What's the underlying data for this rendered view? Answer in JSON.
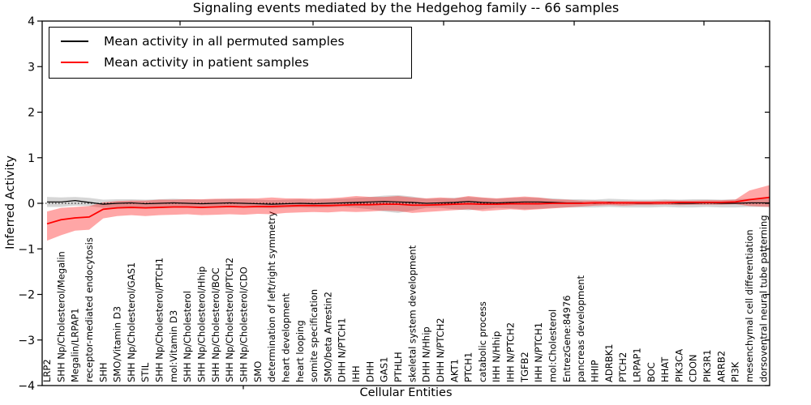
{
  "chart_data": {
    "type": "line",
    "title": "Signaling events mediated by the Hedgehog family -- 66 samples",
    "xlabel": "Cellular Entities",
    "ylabel": "Inferred Activity",
    "ylim": [
      -4,
      4
    ],
    "yticks": [
      "4",
      "3",
      "2",
      "1",
      "0",
      "−1",
      "−2",
      "−3",
      "−4"
    ],
    "grid": false,
    "legend_position": "upper left",
    "zero_line_style": "dotted",
    "categories": [
      "LRP2",
      "SHH Np/Cholesterol/Megalin",
      "Megalin/LRPAP1",
      "receptor-mediated endocytosis",
      "SHH",
      "SMO/Vitamin D3",
      "SHH Np/Cholesterol/GAS1",
      "STIL",
      "SHH Np/Cholesterol/PTCH1",
      "mol:Vitamin D3",
      "SHH Np/Cholesterol",
      "SHH Np/Cholesterol/Hhip",
      "SHH Np/Cholesterol/BOC",
      "SHH Np/Cholesterol/PTCH2",
      "SHH Np/Cholesterol/CDO",
      "SMO",
      "determination of left/right symmetry",
      "heart development",
      "heart looping",
      "somite specification",
      "SMO/beta Arrestin2",
      "DHH N/PTCH1",
      "IHH",
      "DHH",
      "GAS1",
      "PTHLH",
      "skeletal system development",
      "DHH N/Hhip",
      "DHH N/PTCH2",
      "AKT1",
      "PTCH1",
      "catabolic process",
      "IHH N/Hhip",
      "IHH N/PTCH2",
      "TGFB2",
      "IHH N/PTCH1",
      "mol:Cholesterol",
      "EntrezGene:84976",
      "pancreas development",
      "HHIP",
      "ADRBK1",
      "PTCH2",
      "LRPAP1",
      "BOC",
      "HHAT",
      "PIK3CA",
      "CDON",
      "PIK3R1",
      "ARRB2",
      "PI3K",
      "mesenchymal cell differentiation",
      "dorsoventral neural tube patterning"
    ],
    "series": [
      {
        "name": "Mean activity in all permuted samples",
        "color": "#000000",
        "band_color": "rgba(128,128,128,0.32)",
        "values": [
          0.03,
          0.03,
          0.06,
          0.02,
          -0.02,
          0.0,
          0.01,
          -0.01,
          0.0,
          0.01,
          0.0,
          -0.01,
          0.0,
          0.01,
          0.0,
          -0.01,
          -0.02,
          -0.01,
          0.0,
          -0.01,
          0.0,
          0.01,
          0.02,
          0.03,
          0.04,
          0.03,
          0.02,
          0.0,
          0.01,
          0.02,
          0.04,
          0.02,
          0.01,
          0.02,
          0.03,
          0.03,
          0.02,
          0.01,
          0.01,
          0.0,
          0.02,
          0.01,
          0.0,
          0.0,
          0.01,
          0.0,
          0.0,
          0.01,
          0.0,
          0.0,
          0.01,
          0.01
        ],
        "band_lo": [
          -0.08,
          -0.08,
          -0.05,
          -0.06,
          -0.1,
          -0.09,
          -0.09,
          -0.1,
          -0.09,
          -0.09,
          -0.09,
          -0.1,
          -0.09,
          -0.09,
          -0.09,
          -0.1,
          -0.11,
          -0.1,
          -0.09,
          -0.1,
          -0.09,
          -0.08,
          -0.1,
          -0.13,
          -0.18,
          -0.21,
          -0.16,
          -0.1,
          -0.1,
          -0.13,
          -0.15,
          -0.13,
          -0.1,
          -0.11,
          -0.13,
          -0.12,
          -0.1,
          -0.09,
          -0.09,
          -0.09,
          -0.08,
          -0.09,
          -0.09,
          -0.09,
          -0.08,
          -0.09,
          -0.09,
          -0.08,
          -0.09,
          -0.09,
          -0.08,
          -0.08
        ],
        "band_hi": [
          0.14,
          0.13,
          0.14,
          0.12,
          0.08,
          0.09,
          0.09,
          0.08,
          0.09,
          0.1,
          0.09,
          0.08,
          0.09,
          0.1,
          0.09,
          0.08,
          0.07,
          0.08,
          0.09,
          0.08,
          0.09,
          0.1,
          0.12,
          0.14,
          0.17,
          0.18,
          0.15,
          0.1,
          0.11,
          0.12,
          0.14,
          0.12,
          0.1,
          0.12,
          0.13,
          0.12,
          0.11,
          0.09,
          0.09,
          0.08,
          0.1,
          0.09,
          0.08,
          0.08,
          0.09,
          0.08,
          0.09,
          0.09,
          0.08,
          0.09,
          0.1,
          0.1
        ]
      },
      {
        "name": "Mean activity in patient samples",
        "color": "#ff0000",
        "band_color": "rgba(255,0,0,0.35)",
        "values": [
          -0.45,
          -0.36,
          -0.32,
          -0.3,
          -0.13,
          -0.1,
          -0.09,
          -0.1,
          -0.09,
          -0.08,
          -0.08,
          -0.09,
          -0.08,
          -0.07,
          -0.08,
          -0.07,
          -0.07,
          -0.06,
          -0.05,
          -0.05,
          -0.05,
          -0.04,
          -0.03,
          -0.03,
          -0.02,
          -0.02,
          -0.04,
          -0.04,
          -0.03,
          -0.02,
          -0.01,
          -0.02,
          -0.02,
          -0.01,
          -0.01,
          -0.01,
          0.0,
          0.0,
          0.0,
          0.01,
          0.01,
          0.01,
          0.01,
          0.01,
          0.01,
          0.02,
          0.02,
          0.02,
          0.02,
          0.03,
          0.08,
          0.13
        ],
        "band_lo": [
          -0.82,
          -0.7,
          -0.6,
          -0.58,
          -0.33,
          -0.28,
          -0.26,
          -0.28,
          -0.26,
          -0.25,
          -0.24,
          -0.26,
          -0.25,
          -0.24,
          -0.25,
          -0.23,
          -0.24,
          -0.21,
          -0.2,
          -0.19,
          -0.2,
          -0.18,
          -0.19,
          -0.18,
          -0.16,
          -0.17,
          -0.21,
          -0.19,
          -0.17,
          -0.15,
          -0.13,
          -0.17,
          -0.15,
          -0.13,
          -0.15,
          -0.13,
          -0.11,
          -0.09,
          -0.07,
          -0.05,
          -0.04,
          -0.05,
          -0.04,
          -0.04,
          -0.03,
          -0.04,
          -0.03,
          -0.03,
          -0.03,
          -0.02,
          -0.06,
          -0.08
        ],
        "band_hi": [
          -0.18,
          -0.1,
          -0.08,
          -0.06,
          0.02,
          0.05,
          0.06,
          0.06,
          0.08,
          0.08,
          0.09,
          0.09,
          0.1,
          0.1,
          0.11,
          0.11,
          0.13,
          0.11,
          0.11,
          0.1,
          0.11,
          0.13,
          0.16,
          0.14,
          0.14,
          0.16,
          0.13,
          0.11,
          0.13,
          0.11,
          0.16,
          0.13,
          0.11,
          0.13,
          0.15,
          0.13,
          0.09,
          0.08,
          0.06,
          0.06,
          0.05,
          0.05,
          0.05,
          0.05,
          0.06,
          0.06,
          0.06,
          0.07,
          0.07,
          0.08,
          0.28,
          0.4
        ]
      }
    ]
  }
}
